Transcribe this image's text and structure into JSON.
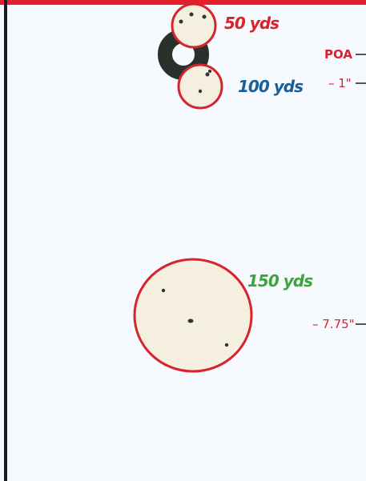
{
  "groups": [
    {
      "label": "50 yds"
    },
    {
      "label": "100 yds"
    },
    {
      "label": "150 yds"
    }
  ],
  "markers": [
    {
      "label": "POA"
    },
    {
      "label": "– 1\""
    },
    {
      "label": "– 7.75\""
    }
  ]
}
